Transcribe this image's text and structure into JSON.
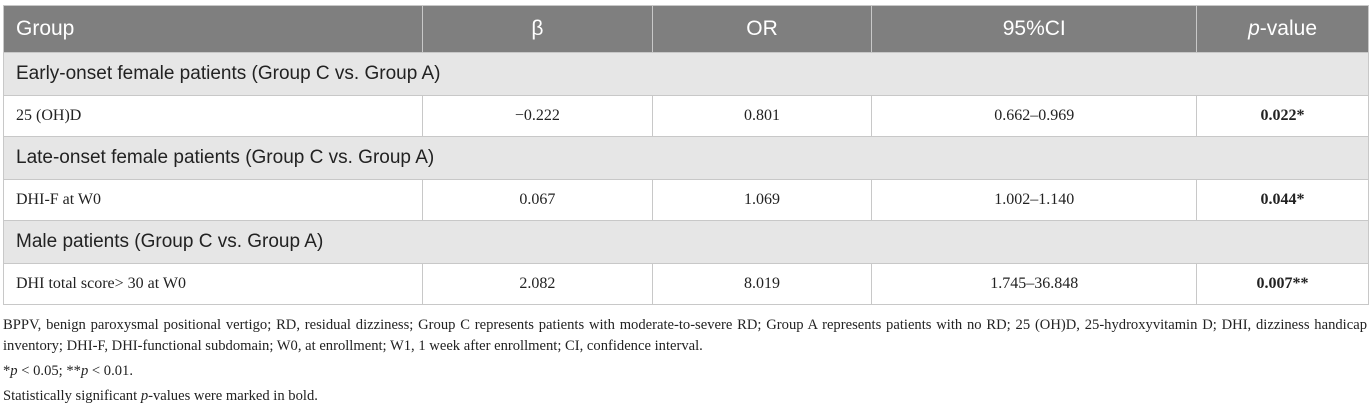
{
  "table": {
    "header": [
      [
        "Group"
      ],
      [
        "β"
      ],
      [
        "OR"
      ],
      [
        "95%CI"
      ],
      [
        "p",
        "-value"
      ]
    ],
    "sections": [
      {
        "title": "Early-onset female patients (Group C vs. Group A)",
        "rows": [
          [
            "25 (OH)D",
            "−0.222",
            "0.801",
            "0.662–0.969",
            "0.022*"
          ]
        ]
      },
      {
        "title": "Late-onset female patients (Group C vs. Group A)",
        "rows": [
          [
            "DHI-F at W0",
            "0.067",
            "1.069",
            "1.002–1.140",
            "0.044*"
          ]
        ]
      },
      {
        "title": "Male patients (Group C vs. Group A)",
        "rows": [
          [
            "DHI total score> 30 at W0",
            "2.082",
            "8.019",
            "1.745–36.848",
            "0.007**"
          ]
        ]
      }
    ]
  },
  "notes": [
    [
      "BPPV, benign paroxysmal positional vertigo; RD, residual dizziness; Group C represents patients with moderate-to-severe RD; Group A represents patients with no RD; 25 (OH)D, 25-hydroxyvitamin D; DHI, dizziness handicap inventory; DHI-F, DHI-functional subdomain; W0, at enrollment; W1, 1 week after enrollment; CI, confidence interval."
    ],
    [
      "*",
      "p",
      " < 0.05; **",
      "p",
      " < 0.01."
    ],
    [
      "Statistically significant ",
      "p",
      "-values were marked in bold."
    ]
  ]
}
